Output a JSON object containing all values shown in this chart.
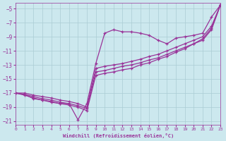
{
  "xlabel": "Windchill (Refroidissement éolien,°C)",
  "xlim": [
    0,
    23
  ],
  "ylim": [
    -21.5,
    -4.2
  ],
  "xticks": [
    0,
    1,
    2,
    3,
    4,
    5,
    6,
    7,
    8,
    9,
    10,
    11,
    12,
    13,
    14,
    15,
    16,
    17,
    18,
    19,
    20,
    21,
    22,
    23
  ],
  "yticks": [
    -5,
    -7,
    -9,
    -11,
    -13,
    -15,
    -17,
    -19,
    -21
  ],
  "bg_color": "#cce8ee",
  "line_color": "#993399",
  "grid_color": "#aaccd4",
  "line1_x": [
    0,
    1,
    2,
    3,
    4,
    5,
    6,
    7,
    8,
    9,
    10,
    11,
    12,
    13,
    14,
    15,
    16,
    17,
    18,
    19,
    20,
    21,
    22,
    23
  ],
  "line1_y": [
    -17.0,
    -17.2,
    -17.8,
    -18.0,
    -18.3,
    -18.5,
    -18.5,
    -20.8,
    -18.5,
    -12.8,
    -8.5,
    -8.0,
    -8.3,
    -8.3,
    -8.5,
    -8.8,
    -9.5,
    -10.0,
    -9.2,
    -9.0,
    -8.8,
    -8.5,
    -6.2,
    -4.5
  ],
  "line2_x": [
    0,
    1,
    2,
    3,
    4,
    5,
    6,
    7,
    8,
    9,
    10,
    11,
    12,
    13,
    14,
    15,
    16,
    17,
    18,
    19,
    20,
    21,
    22,
    23
  ],
  "line2_y": [
    -17.0,
    -17.0,
    -17.3,
    -17.5,
    -17.7,
    -18.0,
    -18.2,
    -18.5,
    -19.0,
    -13.5,
    -13.2,
    -13.0,
    -12.8,
    -12.5,
    -12.2,
    -11.8,
    -11.5,
    -11.0,
    -10.5,
    -10.0,
    -9.5,
    -9.0,
    -7.5,
    -4.5
  ],
  "line3_x": [
    0,
    1,
    2,
    3,
    4,
    5,
    6,
    7,
    8,
    9,
    10,
    11,
    12,
    13,
    14,
    15,
    16,
    17,
    18,
    19,
    20,
    21,
    22,
    23
  ],
  "line3_y": [
    -17.0,
    -17.2,
    -17.5,
    -17.8,
    -18.0,
    -18.3,
    -18.5,
    -18.8,
    -19.2,
    -14.0,
    -13.8,
    -13.5,
    -13.2,
    -13.0,
    -12.7,
    -12.3,
    -12.0,
    -11.5,
    -11.0,
    -10.5,
    -10.0,
    -9.3,
    -7.8,
    -4.5
  ],
  "line4_x": [
    0,
    1,
    2,
    3,
    4,
    5,
    6,
    7,
    8,
    9,
    10,
    11,
    12,
    13,
    14,
    15,
    16,
    17,
    18,
    19,
    20,
    21,
    22,
    23
  ],
  "line4_y": [
    -17.0,
    -17.3,
    -17.7,
    -18.0,
    -18.2,
    -18.5,
    -18.7,
    -19.0,
    -19.5,
    -14.5,
    -14.2,
    -14.0,
    -13.7,
    -13.5,
    -13.0,
    -12.7,
    -12.2,
    -11.8,
    -11.2,
    -10.7,
    -10.0,
    -9.5,
    -8.0,
    -4.5
  ]
}
